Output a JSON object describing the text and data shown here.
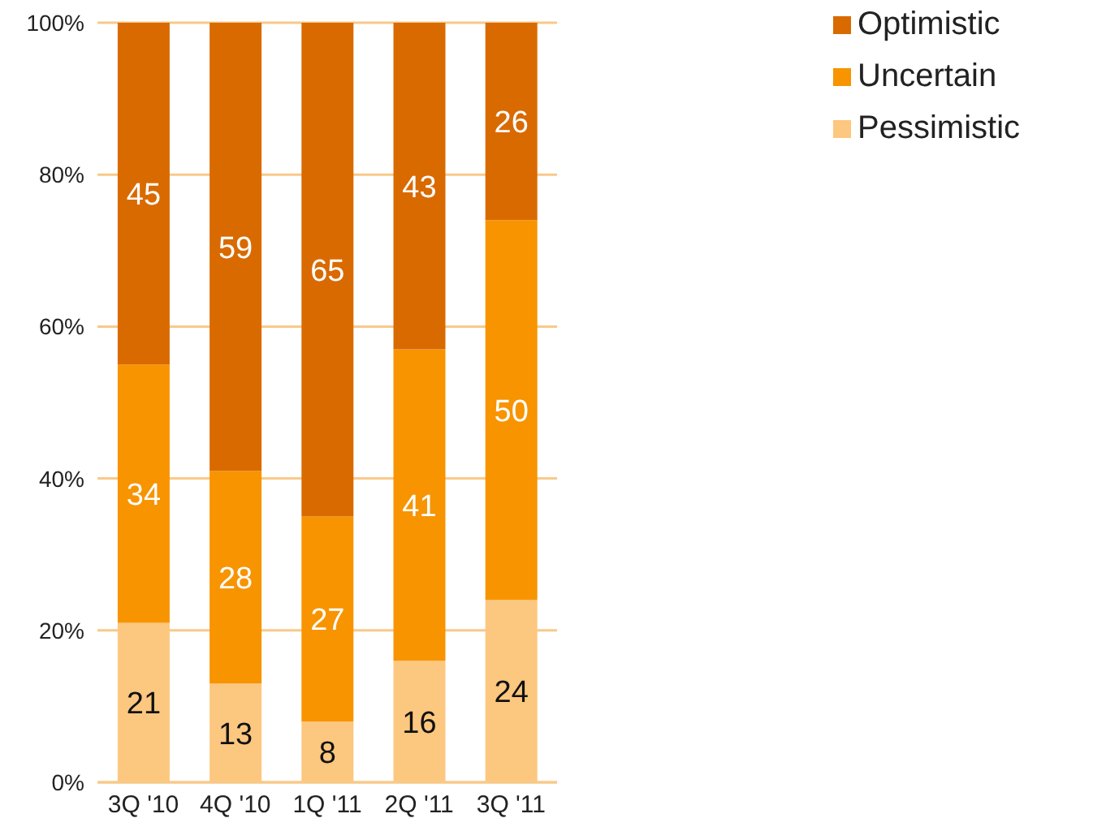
{
  "chart_data": {
    "type": "bar",
    "stacked": true,
    "categories": [
      "3Q '10",
      "4Q '10",
      "1Q '11",
      "2Q '11",
      "3Q '11"
    ],
    "series": [
      {
        "name": "Pessimistic",
        "color": "#fcc77e",
        "values": [
          21,
          13,
          8,
          16,
          24
        ]
      },
      {
        "name": "Uncertain",
        "color": "#f79400",
        "values": [
          34,
          28,
          27,
          41,
          50
        ]
      },
      {
        "name": "Optimistic",
        "color": "#d96a00",
        "values": [
          45,
          59,
          65,
          43,
          26
        ]
      }
    ],
    "ylim": [
      0,
      100
    ],
    "yticks": [
      {
        "value": 0,
        "label": "0%"
      },
      {
        "value": 20,
        "label": "20%"
      },
      {
        "value": 40,
        "label": "40%"
      },
      {
        "value": 60,
        "label": "60%"
      },
      {
        "value": 80,
        "label": "80%"
      },
      {
        "value": 100,
        "label": "100%"
      }
    ],
    "grid": "y",
    "legend": "top right",
    "data_labels": true
  }
}
